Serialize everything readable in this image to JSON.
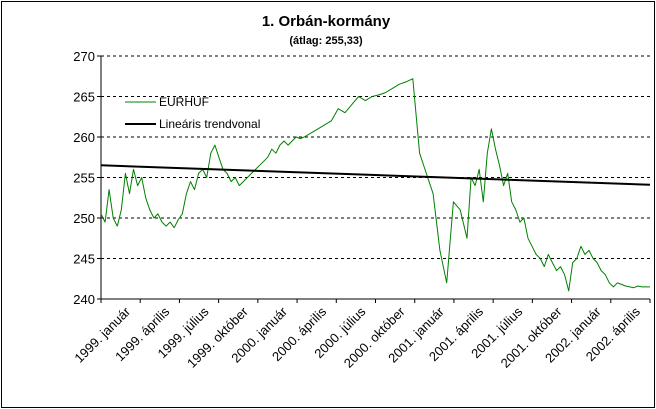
{
  "chart_data": {
    "type": "line",
    "title": "1. Orbán-kormány",
    "subtitle": "(átlag: 255,33)",
    "xlabel": "",
    "ylabel": "",
    "ylim": [
      240,
      270
    ],
    "yticks": [
      240,
      245,
      250,
      255,
      260,
      265,
      270
    ],
    "grid": "horizontal-dashed",
    "legend_position": "top-left",
    "categories": [
      "1999. január",
      "1999. április",
      "1999. július",
      "1999. október",
      "2000. január",
      "2000. április",
      "2000. július",
      "2000. október",
      "2001. január",
      "2001. április",
      "2001. július",
      "2001. október",
      "2002. január",
      "2002. április"
    ],
    "x_range": [
      0,
      40.5
    ],
    "series": [
      {
        "name": "EURHUF",
        "color": "#008000",
        "x": [
          0,
          0.3,
          0.6,
          0.9,
          1.2,
          1.5,
          1.8,
          2.1,
          2.4,
          2.7,
          3.0,
          3.3,
          3.6,
          3.9,
          4.2,
          4.5,
          4.8,
          5.1,
          5.4,
          5.7,
          6.0,
          6.3,
          6.6,
          6.9,
          7.2,
          7.5,
          7.8,
          8.1,
          8.4,
          8.7,
          9.0,
          9.3,
          9.6,
          9.9,
          10.2,
          10.5,
          10.8,
          11.1,
          11.4,
          11.7,
          12.0,
          12.3,
          12.6,
          12.9,
          13.2,
          13.5,
          13.8,
          14.1,
          14.4,
          14.7,
          15.0,
          15.5,
          16.0,
          16.5,
          17.0,
          17.5,
          18.0,
          18.5,
          19.0,
          19.5,
          20.0,
          20.5,
          21.0,
          21.5,
          22.0,
          22.5,
          23.0,
          23.5,
          24.0,
          24.5,
          25.0,
          25.5,
          26.0,
          26.5,
          27.0,
          27.3,
          27.6,
          27.9,
          28.2,
          28.5,
          28.8,
          29.1,
          29.4,
          29.7,
          30.0,
          30.3,
          30.6,
          30.9,
          31.2,
          31.5,
          31.8,
          32.1,
          32.4,
          32.7,
          33.0,
          33.3,
          33.6,
          33.9,
          34.2,
          34.5,
          34.8,
          35.1,
          35.4,
          35.7,
          36.0,
          36.3,
          36.6,
          36.9,
          37.2,
          37.5,
          37.8,
          38.1,
          38.4,
          38.7,
          39.0,
          39.3,
          39.6,
          39.9,
          40.2,
          40.5
        ],
        "values": [
          250.5,
          249.5,
          253.5,
          250.0,
          249.0,
          251.0,
          255.5,
          253.0,
          256.0,
          254.0,
          255.0,
          252.5,
          251.0,
          250.0,
          250.5,
          249.5,
          249.0,
          249.5,
          248.8,
          249.8,
          250.5,
          253.0,
          254.5,
          253.5,
          255.5,
          256.0,
          255.0,
          258.0,
          259.0,
          257.5,
          256.0,
          255.5,
          254.5,
          255.0,
          254.0,
          254.5,
          255.0,
          255.5,
          256.0,
          256.5,
          257.0,
          257.5,
          258.5,
          258.0,
          259.0,
          259.5,
          259.0,
          259.5,
          260.0,
          259.8,
          260.0,
          260.5,
          261.0,
          261.5,
          262.0,
          263.5,
          263.0,
          264.0,
          265.0,
          264.5,
          265.0,
          265.2,
          265.5,
          266.0,
          266.5,
          266.8,
          267.2,
          258.0,
          255.5,
          253.0,
          246.0,
          242.0,
          252.0,
          251.0,
          247.5,
          255.0,
          254.0,
          256.0,
          252.0,
          258.0,
          261.0,
          258.5,
          256.5,
          254.0,
          255.5,
          252.0,
          251.0,
          249.5,
          250.0,
          247.5,
          246.5,
          245.5,
          245.0,
          244.0,
          245.5,
          244.5,
          243.5,
          244.0,
          243.0,
          241.0,
          244.5,
          245.0,
          246.5,
          245.5,
          246.0,
          245.0,
          244.5,
          243.5,
          243.0,
          242.0,
          241.5,
          242.0,
          241.8,
          241.6,
          241.5,
          241.4,
          241.6,
          241.5,
          241.5,
          241.5
        ]
      },
      {
        "name": "Lineáris trendvonal",
        "color": "#000000",
        "x": [
          0,
          40.5
        ],
        "values": [
          256.5,
          254.1
        ]
      }
    ]
  }
}
